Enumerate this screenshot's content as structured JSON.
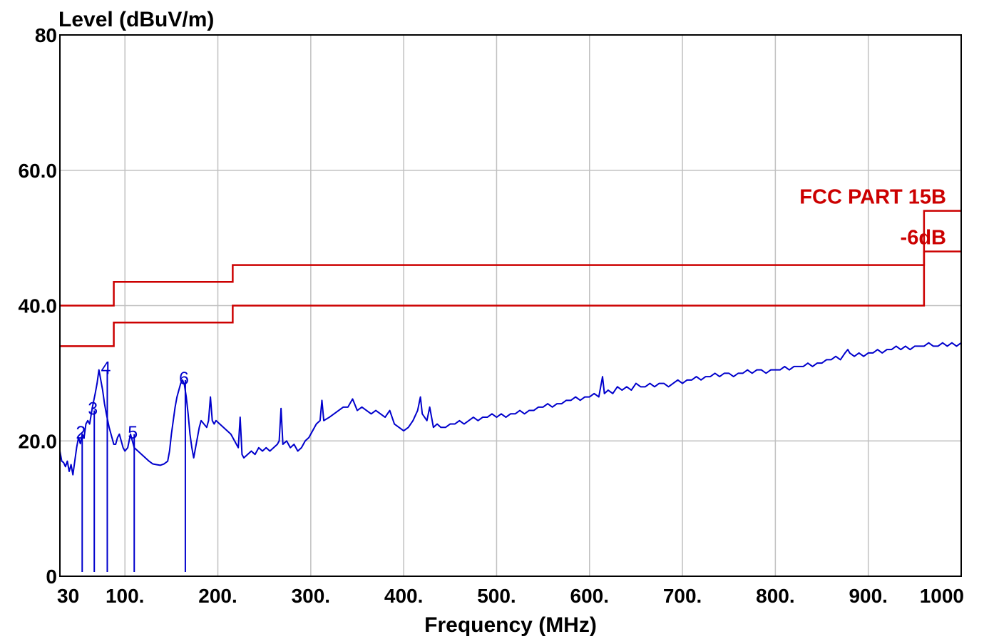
{
  "chart_data": {
    "type": "line",
    "ylabel": "Level (dBuV/m)",
    "xlabel": "Frequency (MHz)",
    "xlim": [
      30,
      1000
    ],
    "ylim": [
      0,
      80
    ],
    "y_ticks": [
      {
        "value": 0,
        "label": "0"
      },
      {
        "value": 20,
        "label": "20.0"
      },
      {
        "value": 40,
        "label": "40.0"
      },
      {
        "value": 60,
        "label": "60.0"
      },
      {
        "value": 80,
        "label": "80"
      }
    ],
    "x_ticks": [
      {
        "value": 30,
        "label": "30"
      },
      {
        "value": 100,
        "label": "100."
      },
      {
        "value": 200,
        "label": "200."
      },
      {
        "value": 300,
        "label": "300."
      },
      {
        "value": 400,
        "label": "400."
      },
      {
        "value": 500,
        "label": "500."
      },
      {
        "value": 600,
        "label": "600."
      },
      {
        "value": 700,
        "label": "700."
      },
      {
        "value": 800,
        "label": "800."
      },
      {
        "value": 900,
        "label": "900."
      },
      {
        "value": 1000,
        "label": "1000"
      }
    ],
    "grid": true,
    "colors": {
      "measurement": "#0000cc",
      "limit": "#cc0000",
      "grid": "#c0c0c0"
    },
    "limit_lines": [
      {
        "label": "FCC PART 15B",
        "points": [
          [
            30,
            40
          ],
          [
            88,
            40
          ],
          [
            88,
            43.5
          ],
          [
            216,
            43.5
          ],
          [
            216,
            46
          ],
          [
            960,
            46
          ],
          [
            960,
            54
          ],
          [
            1000,
            54
          ]
        ]
      },
      {
        "label": "-6dB",
        "points": [
          [
            30,
            34
          ],
          [
            88,
            34
          ],
          [
            88,
            37.5
          ],
          [
            216,
            37.5
          ],
          [
            216,
            40
          ],
          [
            960,
            40
          ],
          [
            960,
            48
          ],
          [
            1000,
            48
          ]
        ]
      }
    ],
    "series": [
      {
        "points": [
          [
            30,
            18.5
          ],
          [
            32,
            17
          ],
          [
            34,
            16.8
          ],
          [
            36,
            16.2
          ],
          [
            38,
            17
          ],
          [
            40,
            15.5
          ],
          [
            42,
            16.5
          ],
          [
            44,
            15
          ],
          [
            46,
            17
          ],
          [
            48,
            19
          ],
          [
            50,
            20.5
          ],
          [
            52,
            19.6
          ],
          [
            54,
            21
          ],
          [
            56,
            20.5
          ],
          [
            58,
            22.5
          ],
          [
            60,
            23
          ],
          [
            62,
            22.5
          ],
          [
            65,
            25
          ],
          [
            68,
            27
          ],
          [
            70,
            28.5
          ],
          [
            72,
            30.5
          ],
          [
            74,
            29
          ],
          [
            76,
            27.5
          ],
          [
            78,
            25.5
          ],
          [
            80,
            24
          ],
          [
            83,
            22
          ],
          [
            86,
            20.5
          ],
          [
            88,
            19.5
          ],
          [
            90,
            19.5
          ],
          [
            92,
            20.5
          ],
          [
            94,
            21
          ],
          [
            96,
            20
          ],
          [
            98,
            19
          ],
          [
            100,
            18.5
          ],
          [
            103,
            19
          ],
          [
            106,
            21
          ],
          [
            108,
            20
          ],
          [
            110,
            19
          ],
          [
            114,
            18.5
          ],
          [
            118,
            18
          ],
          [
            122,
            17.5
          ],
          [
            126,
            17
          ],
          [
            130,
            16.6
          ],
          [
            134,
            16.5
          ],
          [
            138,
            16.4
          ],
          [
            142,
            16.6
          ],
          [
            146,
            17
          ],
          [
            148,
            18.5
          ],
          [
            150,
            21
          ],
          [
            152,
            23
          ],
          [
            154,
            25
          ],
          [
            156,
            26.5
          ],
          [
            158,
            27.5
          ],
          [
            160,
            28.5
          ],
          [
            162,
            29
          ],
          [
            164,
            28.3
          ],
          [
            166,
            26.5
          ],
          [
            168,
            24
          ],
          [
            170,
            21
          ],
          [
            172,
            19
          ],
          [
            174,
            17.5
          ],
          [
            176,
            19
          ],
          [
            178,
            20.5
          ],
          [
            180,
            22
          ],
          [
            182,
            23
          ],
          [
            185,
            22.5
          ],
          [
            188,
            22
          ],
          [
            190,
            23
          ],
          [
            192,
            26.5
          ],
          [
            194,
            23
          ],
          [
            196,
            22.5
          ],
          [
            198,
            23
          ],
          [
            202,
            22.5
          ],
          [
            206,
            22
          ],
          [
            210,
            21.5
          ],
          [
            214,
            21
          ],
          [
            218,
            20
          ],
          [
            222,
            19
          ],
          [
            224,
            23.5
          ],
          [
            226,
            18
          ],
          [
            228,
            17.5
          ],
          [
            232,
            18
          ],
          [
            236,
            18.5
          ],
          [
            240,
            18
          ],
          [
            244,
            19
          ],
          [
            248,
            18.5
          ],
          [
            252,
            19
          ],
          [
            256,
            18.5
          ],
          [
            260,
            19
          ],
          [
            264,
            19.5
          ],
          [
            266,
            20
          ],
          [
            268,
            24.8
          ],
          [
            270,
            19.5
          ],
          [
            274,
            20
          ],
          [
            278,
            19
          ],
          [
            282,
            19.5
          ],
          [
            286,
            18.5
          ],
          [
            290,
            19
          ],
          [
            294,
            20
          ],
          [
            298,
            20.5
          ],
          [
            302,
            21.5
          ],
          [
            306,
            22.5
          ],
          [
            310,
            23
          ],
          [
            312,
            26
          ],
          [
            314,
            23
          ],
          [
            320,
            23.5
          ],
          [
            325,
            24
          ],
          [
            330,
            24.5
          ],
          [
            335,
            25
          ],
          [
            340,
            25
          ],
          [
            345,
            26.2
          ],
          [
            350,
            24.5
          ],
          [
            355,
            25
          ],
          [
            360,
            24.5
          ],
          [
            365,
            24
          ],
          [
            370,
            24.5
          ],
          [
            375,
            24
          ],
          [
            380,
            23.5
          ],
          [
            385,
            24.5
          ],
          [
            390,
            22.5
          ],
          [
            395,
            22
          ],
          [
            400,
            21.5
          ],
          [
            405,
            22
          ],
          [
            410,
            23
          ],
          [
            415,
            24.5
          ],
          [
            418,
            26.5
          ],
          [
            420,
            24
          ],
          [
            425,
            23
          ],
          [
            428,
            25
          ],
          [
            432,
            22
          ],
          [
            436,
            22.5
          ],
          [
            440,
            22
          ],
          [
            445,
            22
          ],
          [
            450,
            22.5
          ],
          [
            455,
            22.5
          ],
          [
            460,
            23
          ],
          [
            465,
            22.5
          ],
          [
            470,
            23
          ],
          [
            475,
            23.5
          ],
          [
            480,
            23
          ],
          [
            485,
            23.5
          ],
          [
            490,
            23.5
          ],
          [
            495,
            24
          ],
          [
            500,
            23.5
          ],
          [
            505,
            24
          ],
          [
            510,
            23.5
          ],
          [
            515,
            24
          ],
          [
            520,
            24
          ],
          [
            525,
            24.5
          ],
          [
            530,
            24
          ],
          [
            535,
            24.5
          ],
          [
            540,
            24.5
          ],
          [
            545,
            25
          ],
          [
            550,
            25
          ],
          [
            555,
            25.5
          ],
          [
            560,
            25
          ],
          [
            565,
            25.5
          ],
          [
            570,
            25.5
          ],
          [
            575,
            26
          ],
          [
            580,
            26
          ],
          [
            585,
            26.5
          ],
          [
            590,
            26
          ],
          [
            595,
            26.5
          ],
          [
            600,
            26.5
          ],
          [
            605,
            27
          ],
          [
            610,
            26.5
          ],
          [
            614,
            29.5
          ],
          [
            616,
            27
          ],
          [
            620,
            27.5
          ],
          [
            625,
            27
          ],
          [
            630,
            28
          ],
          [
            635,
            27.5
          ],
          [
            640,
            28
          ],
          [
            645,
            27.5
          ],
          [
            650,
            28.5
          ],
          [
            655,
            28
          ],
          [
            660,
            28
          ],
          [
            665,
            28.5
          ],
          [
            670,
            28
          ],
          [
            675,
            28.5
          ],
          [
            680,
            28.5
          ],
          [
            685,
            28
          ],
          [
            690,
            28.5
          ],
          [
            695,
            29
          ],
          [
            700,
            28.5
          ],
          [
            705,
            29
          ],
          [
            710,
            29
          ],
          [
            715,
            29.5
          ],
          [
            720,
            29
          ],
          [
            725,
            29.5
          ],
          [
            730,
            29.5
          ],
          [
            735,
            30
          ],
          [
            740,
            29.5
          ],
          [
            745,
            30
          ],
          [
            750,
            30
          ],
          [
            755,
            29.5
          ],
          [
            760,
            30
          ],
          [
            765,
            30
          ],
          [
            770,
            30.5
          ],
          [
            775,
            30
          ],
          [
            780,
            30.5
          ],
          [
            785,
            30.5
          ],
          [
            790,
            30
          ],
          [
            795,
            30.5
          ],
          [
            800,
            30.5
          ],
          [
            805,
            30.5
          ],
          [
            810,
            31
          ],
          [
            815,
            30.5
          ],
          [
            820,
            31
          ],
          [
            825,
            31
          ],
          [
            830,
            31
          ],
          [
            835,
            31.5
          ],
          [
            840,
            31
          ],
          [
            845,
            31.5
          ],
          [
            850,
            31.5
          ],
          [
            855,
            32
          ],
          [
            860,
            32
          ],
          [
            865,
            32.5
          ],
          [
            870,
            32
          ],
          [
            875,
            33
          ],
          [
            878,
            33.5
          ],
          [
            880,
            33
          ],
          [
            885,
            32.5
          ],
          [
            890,
            33
          ],
          [
            895,
            32.5
          ],
          [
            900,
            33
          ],
          [
            905,
            33
          ],
          [
            910,
            33.5
          ],
          [
            915,
            33
          ],
          [
            920,
            33.5
          ],
          [
            925,
            33.5
          ],
          [
            930,
            34
          ],
          [
            935,
            33.5
          ],
          [
            940,
            34
          ],
          [
            945,
            33.5
          ],
          [
            950,
            34
          ],
          [
            955,
            34
          ],
          [
            960,
            34
          ],
          [
            965,
            34.5
          ],
          [
            970,
            34
          ],
          [
            975,
            34
          ],
          [
            980,
            34.5
          ],
          [
            985,
            34
          ],
          [
            990,
            34.5
          ],
          [
            995,
            34
          ],
          [
            1000,
            34.5
          ]
        ]
      }
    ],
    "markers": [
      {
        "label": "2",
        "x": 54,
        "y": 21
      },
      {
        "label": "3",
        "x": 67,
        "y": 24.5
      },
      {
        "label": "4",
        "x": 81,
        "y": 30.5
      },
      {
        "label": "5",
        "x": 110,
        "y": 21
      },
      {
        "label": "6",
        "x": 165,
        "y": 29
      }
    ]
  }
}
